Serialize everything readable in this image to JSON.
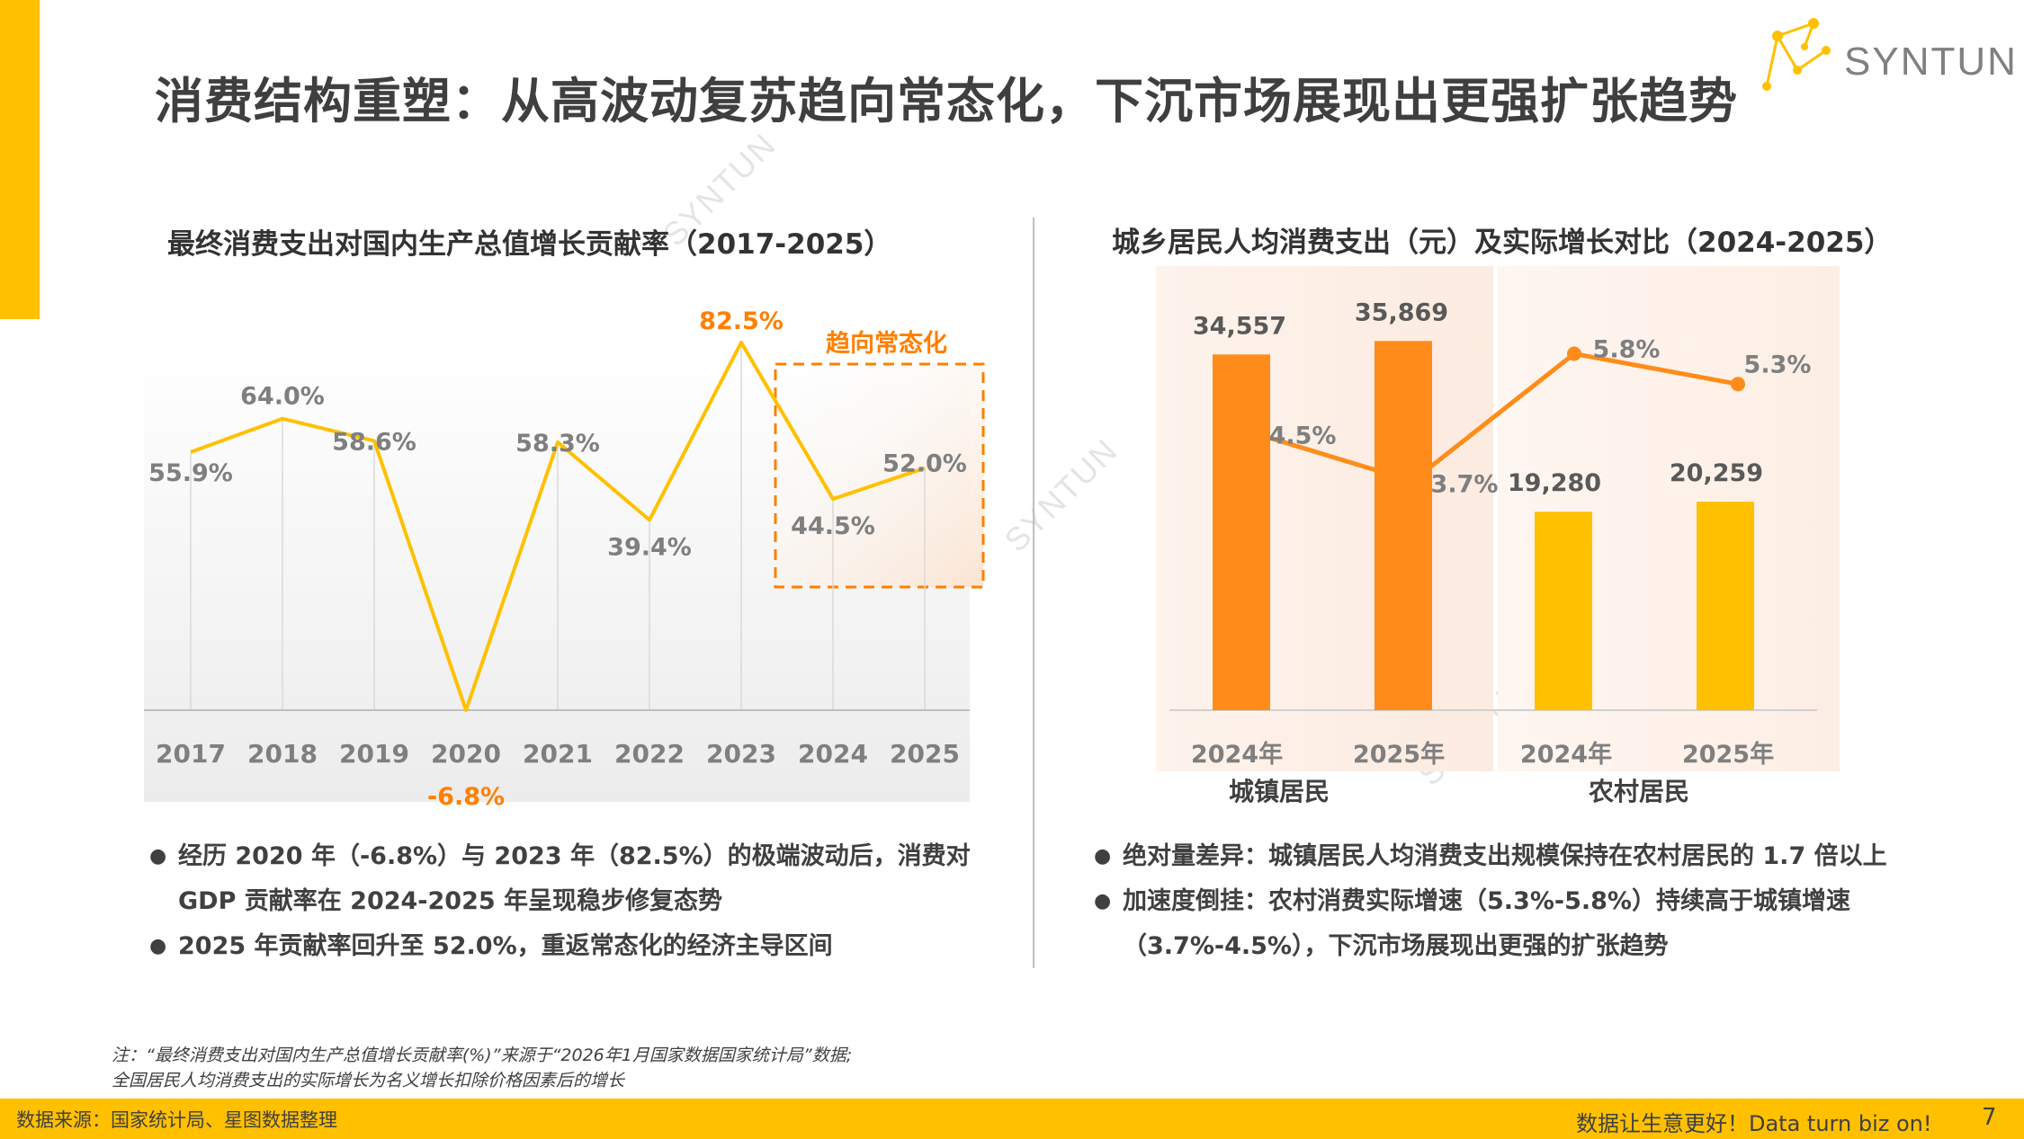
{
  "page": {
    "title": "消费结构重塑：从高波动复苏趋向常态化，下沉市场展现出更强扩张趋势",
    "logo_text": "SYNTUN",
    "watermark": "SYNTUN",
    "page_number": "7"
  },
  "colors": {
    "accent": "#FFC000",
    "urban": "#FF8C1A",
    "rural": "#FFC000",
    "line_left": "#FFC000",
    "line_right": "#FF8C1A",
    "highlight_text": "#FF7F00"
  },
  "left_chart": {
    "title": "最终消费支出对国内生产总值增长贡献率（2017-2025）",
    "annotation": "趋向常态化"
  },
  "right_chart": {
    "title": "城乡居民人均消费支出（元）及实际增长对比（2024-2025）",
    "group_labels": [
      "城镇居民",
      "农村居民"
    ]
  },
  "chart_data": [
    {
      "type": "line",
      "title": "最终消费支出对国内生产总值增长贡献率（2017-2025）",
      "x": [
        "2017",
        "2018",
        "2019",
        "2020",
        "2021",
        "2022",
        "2023",
        "2024",
        "2025"
      ],
      "series": [
        {
          "values": [
            55.9,
            64.0,
            58.6,
            -6.8,
            58.3,
            39.4,
            82.5,
            44.5,
            52.0
          ],
          "labels": [
            "55.9%",
            "64.0%",
            "58.6%",
            "-6.8%",
            "58.3%",
            "39.4%",
            "82.5%",
            "44.5%",
            "52.0%"
          ]
        }
      ],
      "ylim": [
        -6.8,
        90
      ],
      "grid": "vertical",
      "highlight_range": [
        "2024",
        "2025"
      ]
    },
    {
      "type": "bar",
      "title": "城乡居民人均消费支出（元）及实际增长对比（2024-2025）",
      "categories": [
        "2024年",
        "2025年",
        "2024年",
        "2025年"
      ],
      "groups": [
        "城镇居民",
        "城镇居民",
        "农村居民",
        "农村居民"
      ],
      "series": [
        {
          "type": "bar",
          "values": [
            34557,
            35869,
            19280,
            20259
          ],
          "labels": [
            "34,557",
            "35,869",
            "19,280",
            "20,259"
          ]
        },
        {
          "type": "line",
          "values": [
            4.5,
            3.7,
            5.8,
            5.3
          ],
          "labels": [
            "4.5%",
            "3.7%",
            "5.8%",
            "5.3%"
          ]
        }
      ],
      "ylim": [
        0,
        40000
      ],
      "line_ylim": [
        0,
        10
      ]
    }
  ],
  "bullets_left": [
    {
      "lines": [
        "经历 2020 年（-6.8%）与 2023 年（82.5%）的极端波动后，消费对",
        "GDP 贡献率在 2024-2025 年呈现稳步修复态势"
      ]
    },
    {
      "lines": [
        "2025 年贡献率回升至 52.0%，重返常态化的经济主导区间"
      ]
    }
  ],
  "bullets_right": [
    {
      "lines": [
        "绝对量差异：城镇居民人均消费支出规模保持在农村居民的 1.7 倍以上"
      ]
    },
    {
      "lines": [
        "加速度倒挂：农村消费实际增速（5.3%-5.8%）持续高于城镇增速",
        "（3.7%-4.5%），下沉市场展现出更强的扩张趋势"
      ]
    }
  ],
  "note": {
    "line1": "注：“最终消费支出对国内生产总值增长贡献率(%)”来源于“2026年1月国家数据国家统计局”数据;",
    "line2": "全国居民人均消费支出的实际增长为名义增长扣除价格因素后的增长"
  },
  "footer": {
    "source": "数据来源：国家统计局、星图数据整理",
    "slogan": "数据让生意更好！Data turn biz on!"
  }
}
